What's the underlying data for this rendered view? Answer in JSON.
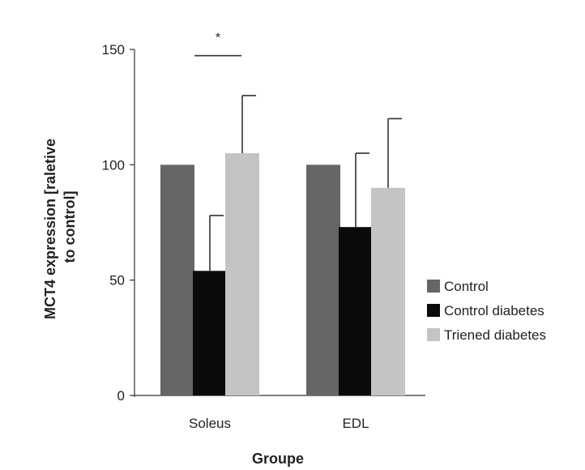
{
  "chart_data": {
    "type": "bar",
    "title": "",
    "xlabel": "Groupe",
    "ylabel_line1": "MCT4 expression [raletive",
    "ylabel_line2": "to control]",
    "ylim": [
      0,
      150
    ],
    "yticks": [
      "0",
      "50",
      "100",
      "150"
    ],
    "categories": [
      "Soleus",
      "EDL"
    ],
    "series": [
      {
        "name": "Control",
        "color": "#666666",
        "values": [
          100,
          100
        ],
        "errors": [
          0,
          0
        ]
      },
      {
        "name": "Control diabetes",
        "color": "#0a0a0a",
        "values": [
          54,
          73
        ],
        "errors": [
          24,
          32
        ]
      },
      {
        "name": "Triened diabetes",
        "color": "#c4c4c4",
        "values": [
          105,
          90
        ],
        "errors": [
          25,
          30
        ]
      }
    ],
    "legend_position": "right",
    "annotation": {
      "text": "*",
      "category": "Soleus",
      "spans_series": [
        1,
        2
      ],
      "at_value": 148
    },
    "grid": false
  }
}
